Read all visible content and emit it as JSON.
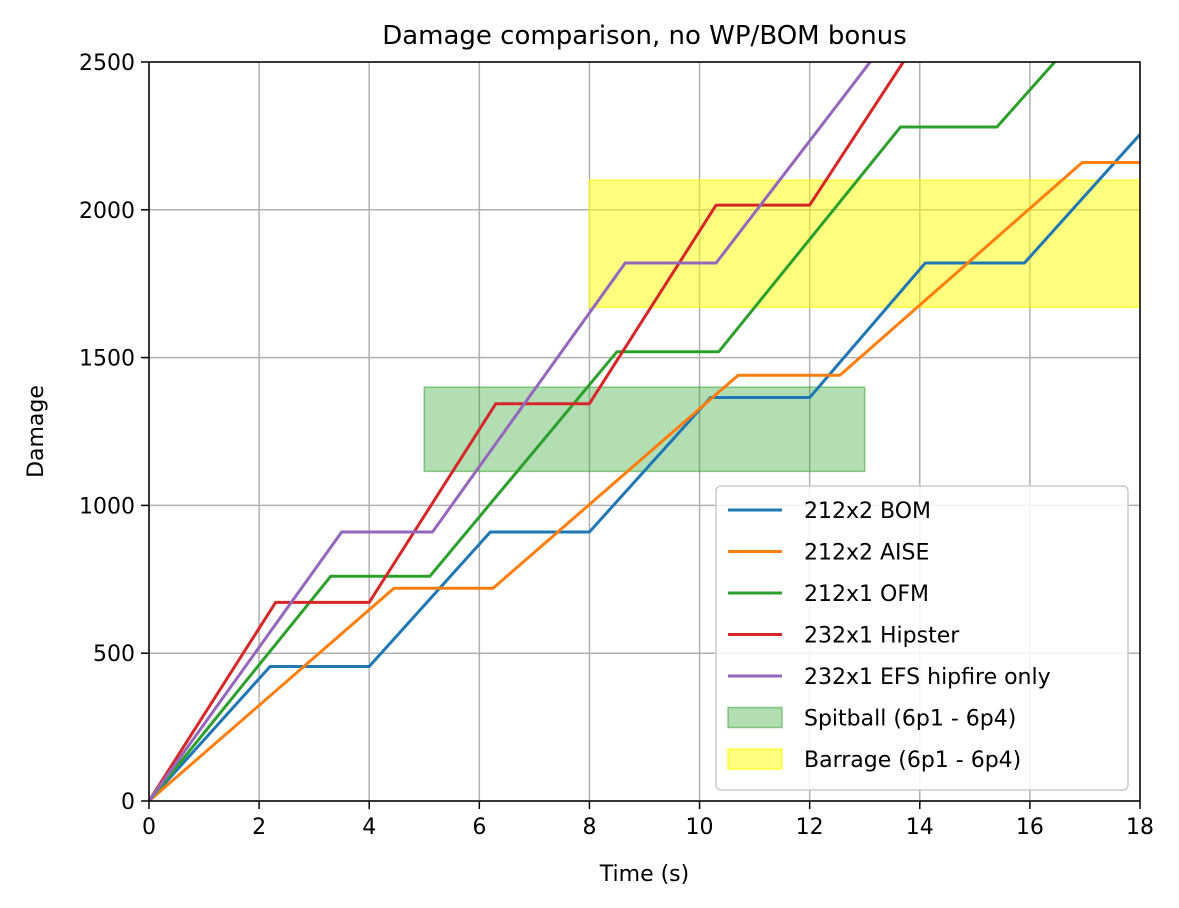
{
  "chart_data": {
    "type": "line",
    "title": "Damage comparison, no WP/BOM bonus",
    "xlabel": "Time (s)",
    "ylabel": "Damage",
    "xlim": [
      0,
      18
    ],
    "ylim": [
      0,
      2500
    ],
    "xticks": [
      0,
      2,
      4,
      6,
      8,
      10,
      12,
      14,
      16,
      18
    ],
    "yticks": [
      0,
      500,
      1000,
      1500,
      2000,
      2500
    ],
    "grid": true,
    "legend_position": "lower-right",
    "series": [
      {
        "name": "212x2 BOM",
        "color": "#1f77b4",
        "x": [
          0,
          2.2,
          4.0,
          6.2,
          8.0,
          10.2,
          12.0,
          14.1,
          15.9,
          18.0
        ],
        "y": [
          0,
          455,
          455,
          910,
          910,
          1365,
          1365,
          1820,
          1820,
          2255
        ]
      },
      {
        "name": "212x2 AISE",
        "color": "#ff7f0e",
        "x": [
          0,
          4.45,
          5.15,
          6.25,
          10.7,
          12.55,
          16.95,
          18.0
        ],
        "y": [
          0,
          720,
          720,
          720,
          1440,
          1440,
          2160,
          2160
        ]
      },
      {
        "name": "212x1 OFM",
        "color": "#2ca02c",
        "x": [
          0,
          3.3,
          5.1,
          8.5,
          10.35,
          13.65,
          15.4,
          16.45
        ],
        "y": [
          0,
          760,
          760,
          1520,
          1520,
          2280,
          2280,
          2500
        ]
      },
      {
        "name": "232x1 Hipster",
        "color": "#d62728",
        "x": [
          0,
          2.3,
          4.0,
          6.3,
          8.0,
          10.3,
          12.0,
          13.7
        ],
        "y": [
          0,
          672,
          672,
          1344,
          1344,
          2016,
          2016,
          2500
        ]
      },
      {
        "name": "232x1 EFS hipfire only",
        "color": "#9467bd",
        "x": [
          0,
          3.5,
          5.15,
          8.65,
          10.3,
          13.1
        ],
        "y": [
          0,
          910,
          910,
          1820,
          1820,
          2500
        ]
      }
    ],
    "bands": [
      {
        "name": "Spitball (6p1 - 6p4)",
        "color": "#2ca02c",
        "opacity": 0.36,
        "x": [
          5,
          13
        ],
        "y": [
          1115,
          1400
        ]
      },
      {
        "name": "Barrage (6p1 - 6p4)",
        "color": "#ffff00",
        "opacity": 0.5,
        "x": [
          8,
          18
        ],
        "y": [
          1670,
          2100
        ]
      }
    ]
  }
}
